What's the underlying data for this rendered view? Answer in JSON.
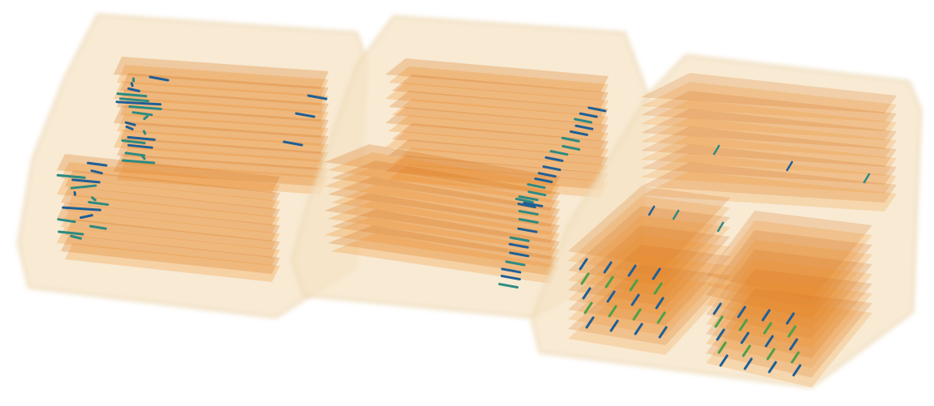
{
  "scene": {
    "description_visible_text": "",
    "colors": {
      "background": "#ffffff",
      "container_fill": "#f5e3c4",
      "container_edge": "#e9cfa3",
      "layer_fill": "#f0902a",
      "layer_shadow": "#d8741a",
      "marker_blue": "#1f5f95",
      "marker_teal": "#2c8a82",
      "marker_green": "#4fa04a"
    },
    "blocks": [
      {
        "id": "left-block",
        "layers": 22,
        "markers": 36
      },
      {
        "id": "middle-block",
        "layers": 22,
        "markers": 30
      },
      {
        "id": "right-block",
        "layers": 20,
        "markers": 40
      }
    ]
  }
}
